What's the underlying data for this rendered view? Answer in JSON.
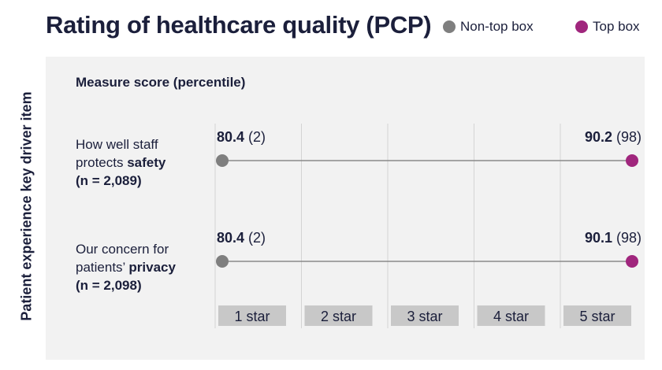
{
  "header": {
    "title": "Rating of healthcare quality (PCP)",
    "legend": [
      {
        "label": "Non-top box",
        "color": "#7f7f7f"
      },
      {
        "label": "Top box",
        "color": "#a0267d"
      }
    ]
  },
  "chart_data": {
    "type": "dumbbell",
    "title": "Rating of healthcare quality (PCP)",
    "subtitle": "Measure score (percentile)",
    "ylabel": "Patient experience key driver item",
    "xlabel": "",
    "x_categories": [
      "1 star",
      "2 star",
      "3 star",
      "4 star",
      "5 star"
    ],
    "series": [
      {
        "name": "Non-top box",
        "color": "#7f7f7f"
      },
      {
        "name": "Top box",
        "color": "#a0267d"
      }
    ],
    "items": [
      {
        "label_parts": [
          "How well staff",
          "protects ",
          "safety",
          "(n = 2,089)"
        ],
        "non_top": {
          "value": "80.4",
          "percentile": "(2)",
          "star_position": 1
        },
        "top": {
          "value": "90.2",
          "percentile": "(98)",
          "star_position": 5
        }
      },
      {
        "label_parts": [
          "Our concern for",
          "patients’ ",
          "privacy",
          "(n = 2,098)"
        ],
        "non_top": {
          "value": "80.4",
          "percentile": "(2)",
          "star_position": 1
        },
        "top": {
          "value": "90.1",
          "percentile": "(98)",
          "star_position": 5
        }
      }
    ],
    "grid": true,
    "legend_position": "top-right"
  }
}
